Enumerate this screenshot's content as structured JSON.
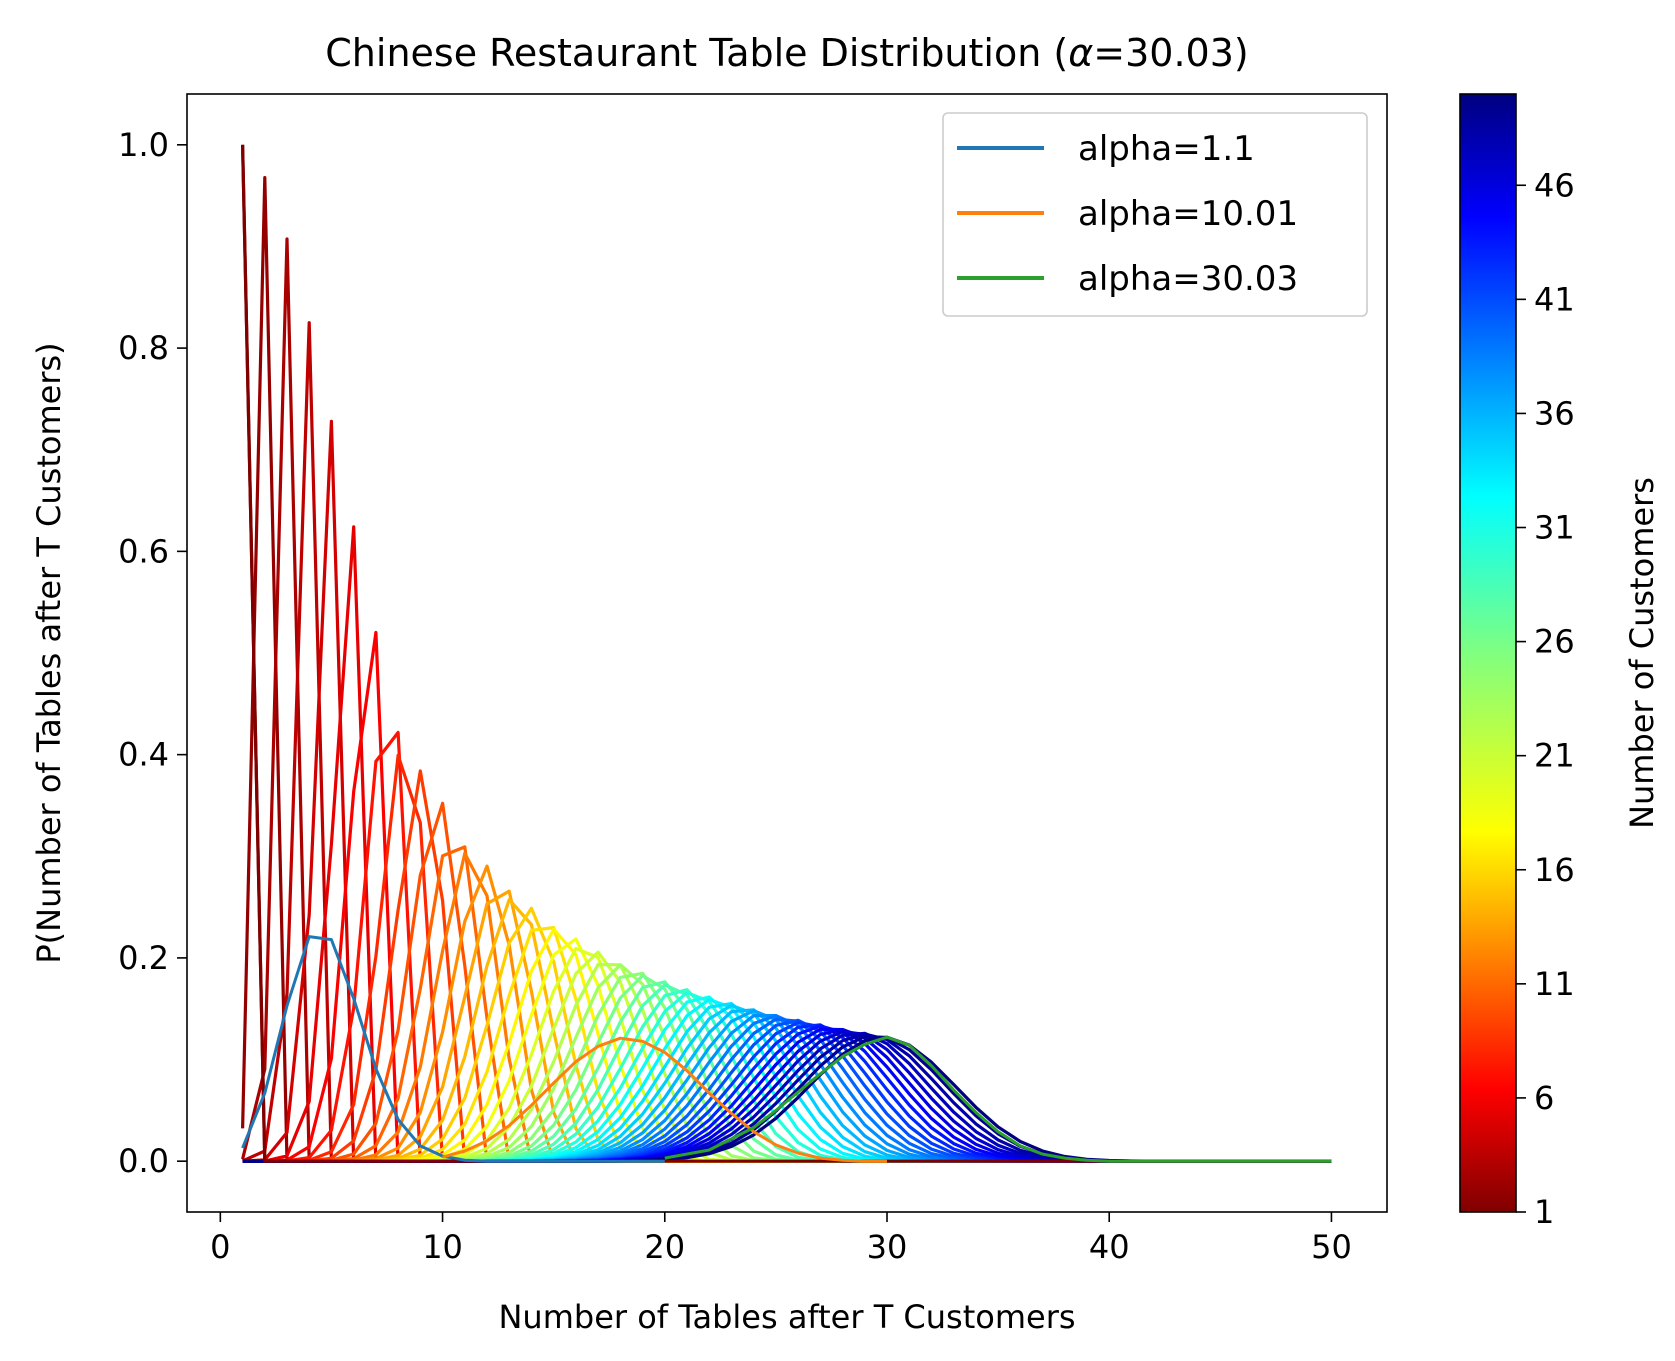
{
  "chart_data": {
    "type": "line",
    "title": "Chinese Restaurant Table Distribution (α=30.03)",
    "title_prefix": "Chinese Restaurant Table Distribution (",
    "title_alpha_symbol": "α",
    "title_suffix": "=30.03)",
    "xlabel": "Number of Tables after T Customers",
    "ylabel": "P(Number of Tables after T Customers)",
    "xlim": [
      -1.5,
      52.5
    ],
    "ylim": [
      -0.05,
      1.05
    ],
    "xticks": [
      0,
      10,
      20,
      30,
      40,
      50
    ],
    "xtick_labels": [
      "0",
      "10",
      "20",
      "30",
      "40",
      "50"
    ],
    "yticks": [
      0.0,
      0.2,
      0.4,
      0.6,
      0.8,
      1.0
    ],
    "ytick_labels": [
      "0.0",
      "0.2",
      "0.4",
      "0.6",
      "0.8",
      "1.0"
    ],
    "grid": false,
    "legend_position": "upper right",
    "legend": [
      {
        "label": "alpha=1.1",
        "color": "#1f77b4"
      },
      {
        "label": "alpha=10.01",
        "color": "#ff7f0e"
      },
      {
        "label": "alpha=30.03",
        "color": "#2ca02c"
      }
    ],
    "colorbar": {
      "label": "Number of Customers",
      "colormap": "jet (reversed: dark red at bottom, dark blue at top)",
      "range": [
        1,
        50
      ],
      "ticks": [
        1,
        6,
        11,
        16,
        21,
        26,
        31,
        36,
        41,
        46
      ],
      "tick_labels": [
        "1",
        "6",
        "11",
        "16",
        "21",
        "26",
        "31",
        "36",
        "41",
        "46"
      ]
    },
    "customer_curves": {
      "description": "One line per number of customers T (1..50), plotting P(K tables | T customers, alpha=30.03) over K = 1..50, colored by T on the colorbar",
      "T_range": [
        1,
        50
      ],
      "alpha": 30.03,
      "x_range": [
        1,
        50
      ],
      "peaks": [
        {
          "T": 1,
          "x": 1,
          "p": 1.0
        },
        {
          "T": 2,
          "x": 2,
          "p": 0.968
        },
        {
          "T": 3,
          "x": 3,
          "p": 0.908
        },
        {
          "T": 4,
          "x": 4,
          "p": 0.826
        },
        {
          "T": 5,
          "x": 5,
          "p": 0.729
        },
        {
          "T": 6,
          "x": 6,
          "p": 0.625
        },
        {
          "T": 7,
          "x": 7,
          "p": 0.521
        },
        {
          "T": 8,
          "x": 8,
          "p": 0.423
        },
        {
          "T": 9,
          "x": 9,
          "p": 0.386
        },
        {
          "T": 11,
          "x": 11,
          "p": 0.31
        },
        {
          "T": 14,
          "x": 14,
          "p": 0.24
        },
        {
          "T": 20,
          "x": 18,
          "p": 0.18
        },
        {
          "T": 30,
          "x": 25,
          "p": 0.14
        },
        {
          "T": 50,
          "x": 30,
          "p": 0.122
        }
      ]
    },
    "series": [
      {
        "name": "alpha=1.1",
        "color": "#1f77b4",
        "x": [
          1,
          2,
          3,
          4,
          5,
          6,
          7,
          8,
          9,
          10,
          11,
          12,
          13,
          14,
          15,
          16,
          17,
          18,
          19,
          20
        ],
        "y": [
          0.013,
          0.067,
          0.153,
          0.221,
          0.218,
          0.16,
          0.091,
          0.041,
          0.015,
          0.005,
          0.001,
          0.0,
          0.0,
          0.0,
          0.0,
          0.0,
          0.0,
          0.0,
          0.0,
          0.0
        ]
      },
      {
        "name": "alpha=10.01",
        "color": "#ff7f0e",
        "x": [
          10,
          11,
          12,
          13,
          14,
          15,
          16,
          17,
          18,
          19,
          20,
          21,
          22,
          23,
          24,
          25,
          26,
          27,
          28,
          29,
          30
        ],
        "y": [
          0.004,
          0.01,
          0.02,
          0.035,
          0.055,
          0.077,
          0.098,
          0.113,
          0.121,
          0.118,
          0.107,
          0.089,
          0.067,
          0.047,
          0.029,
          0.016,
          0.008,
          0.003,
          0.001,
          0.0,
          0.0
        ]
      },
      {
        "name": "alpha=30.03",
        "color": "#2ca02c",
        "x": [
          20,
          22,
          24,
          25,
          26,
          27,
          28,
          29,
          30,
          31,
          32,
          33,
          34,
          35,
          36,
          37,
          38,
          39,
          40,
          42,
          45,
          50
        ],
        "y": [
          0.003,
          0.011,
          0.033,
          0.05,
          0.068,
          0.086,
          0.103,
          0.115,
          0.122,
          0.114,
          0.094,
          0.07,
          0.048,
          0.029,
          0.015,
          0.007,
          0.003,
          0.001,
          0.0,
          0.0,
          0.0,
          0.0
        ]
      }
    ]
  }
}
